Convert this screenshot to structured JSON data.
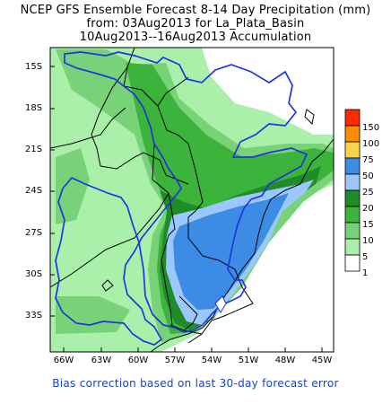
{
  "title": {
    "line1": "NCEP GFS Ensemble Forecast 8-14 Day Precipitation (mm)",
    "line2": "from: 03Aug2013   for La_Plata_Basin",
    "line3": "10Aug2013--16Aug2013 Accumulation"
  },
  "axes": {
    "y_ticks": [
      "15S",
      "18S",
      "21S",
      "24S",
      "27S",
      "30S",
      "33S"
    ],
    "x_ticks": [
      "66W",
      "63W",
      "60W",
      "57W",
      "54W",
      "51W",
      "48W",
      "45W"
    ]
  },
  "legend": {
    "labels": [
      "150",
      "100",
      "75",
      "50",
      "25",
      "20",
      "15",
      "10",
      "5",
      "1"
    ],
    "colors": [
      "#ff2a00",
      "#ff8c00",
      "#ffd24d",
      "#3c8ce6",
      "#9bc8ff",
      "#1e8c28",
      "#3cb43c",
      "#78d278",
      "#aaf0aa",
      "#ffffff"
    ]
  },
  "footnote": "Bias correction based on last 30-day forecast error"
}
